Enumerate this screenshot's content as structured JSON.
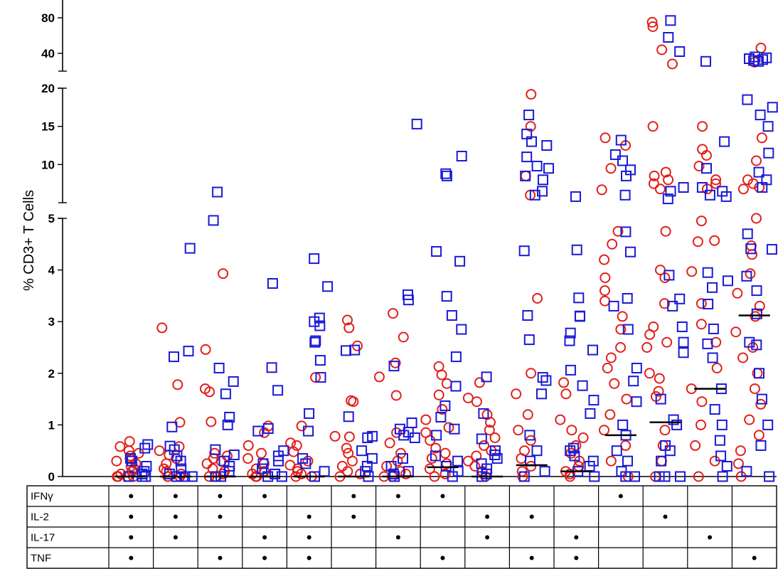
{
  "chart_data": {
    "type": "scatter",
    "title": "",
    "xlabel": "",
    "ylabel": "% CD3+ T Cells",
    "y_axis_segments": [
      {
        "range": [
          0,
          5
        ],
        "ticks": [
          0,
          1,
          2,
          3,
          4,
          5
        ]
      },
      {
        "range": [
          5,
          20
        ],
        "ticks": [
          10,
          15,
          20
        ]
      },
      {
        "range": [
          20,
          100
        ],
        "ticks": [
          40,
          80
        ]
      }
    ],
    "grid": false,
    "legend": "none",
    "colors": {
      "circle_series": "#e0201a",
      "square_series": "#1a1ad6"
    },
    "series": [
      {
        "name": "",
        "marker": "circle",
        "color": "#e0201a",
        "groups": [
          [
            0.68,
            0.58,
            0.5,
            0.45,
            0.4,
            0.35,
            0.3,
            0.25,
            0.2,
            0.15,
            0.1,
            0.05,
            0,
            0,
            0,
            0
          ],
          [
            2.88,
            1.78,
            1.05,
            0.58,
            0.5,
            0.42,
            0.35,
            0.25,
            0.15,
            0.1,
            0.05,
            0,
            0,
            0
          ],
          [
            3.93,
            2.46,
            1.7,
            1.64,
            1.06,
            0.45,
            0.4,
            0.35,
            0.3,
            0.25,
            0.15,
            0.1,
            0.05,
            0,
            0
          ],
          [
            0.98,
            0.85,
            0.6,
            0.45,
            0.35,
            0.25,
            0.15,
            0.1,
            0.05,
            0,
            0,
            0
          ],
          [
            1.92,
            0.98,
            0.65,
            0.6,
            0.48,
            0.3,
            0.22,
            0.15,
            0.1,
            0.05,
            0,
            0
          ],
          [
            3.03,
            2.88,
            2.53,
            1.47,
            1.45,
            0.78,
            0.77,
            0.55,
            0.45,
            0.3,
            0.2,
            0.1,
            0.05,
            0
          ],
          [
            3.16,
            2.7,
            2.2,
            1.93,
            1.57,
            0.85,
            0.65,
            0.45,
            0.3,
            0.2,
            0.1,
            0.05,
            0,
            0
          ],
          [
            2.13,
            1.97,
            1.8,
            1.58,
            1.3,
            1.1,
            0.95,
            0.85,
            0.7,
            0.55,
            0.45,
            0.35,
            0.25,
            0.15,
            0.05,
            0
          ],
          [
            1.82,
            1.52,
            1.45,
            1.2,
            1.05,
            0.9,
            0.75,
            0.6,
            0.5,
            0.4,
            0.3,
            0.2,
            0.1,
            0
          ],
          [
            19.2,
            15,
            8.5,
            6,
            3.45,
            2,
            1.6,
            1.2,
            0.9,
            0.7,
            0.5,
            0.35,
            0.2,
            0.1,
            0
          ],
          [
            1.82,
            1.6,
            1.1,
            0.9,
            0.75,
            0.6,
            0.45,
            0.3,
            0.2,
            0.1,
            0.05,
            0
          ],
          [
            13.5,
            12.5,
            9.5,
            6.7,
            4.75,
            4.5,
            4.2,
            3.85,
            3.6,
            3.4,
            3.1,
            2.85,
            2.5,
            2.3,
            2.1,
            1.8,
            1.5,
            1.2,
            0.9,
            0.6,
            0.3,
            0
          ],
          [
            75,
            70,
            44,
            28,
            15,
            9,
            8.5,
            8,
            7.5,
            6.8,
            4.75,
            4,
            3.85,
            3.35,
            2.9,
            2.75,
            2.6,
            2.5,
            2,
            1.9,
            1.65,
            1.55,
            0.9,
            0.6,
            0.3,
            0
          ],
          [
            15,
            12,
            11.2,
            9.8,
            8,
            7.5,
            6.8,
            4.95,
            4.57,
            4.55,
            3.97,
            3.35,
            2.95,
            2.6,
            2.1,
            1.7,
            1.45,
            1,
            0.6,
            0.3,
            0
          ],
          [
            46,
            30,
            13.5,
            10.5,
            8,
            7.5,
            7,
            6.8,
            5,
            4.47,
            4.3,
            3.93,
            3.55,
            3.3,
            3.1,
            2.8,
            2.5,
            2.3,
            2,
            1.7,
            1.4,
            1.1,
            0.8,
            0.5,
            0.25,
            0
          ]
        ]
      },
      {
        "name": "",
        "marker": "square",
        "color": "#1a1ad6",
        "groups": [
          [
            0.62,
            0.55,
            0.35,
            0.3,
            0.2,
            0.1,
            0.05,
            0,
            0,
            0
          ],
          [
            4.42,
            2.43,
            2.32,
            0.96,
            0.59,
            0.52,
            0.4,
            0.3,
            0.15,
            0.05,
            0,
            0,
            0
          ],
          [
            6.4,
            4.96,
            2.1,
            1.84,
            1.6,
            1.15,
            1,
            0.52,
            0.42,
            0.3,
            0.2,
            0.1,
            0,
            0
          ],
          [
            3.74,
            2.11,
            1.67,
            0.93,
            0.88,
            0.5,
            0.4,
            0.3,
            0.25,
            0.15,
            0.05,
            0,
            0
          ],
          [
            4.22,
            3.68,
            3.07,
            3,
            2.92,
            2.63,
            2.6,
            2.25,
            1.92,
            1.22,
            0.88,
            0.35,
            0.25,
            0.1,
            0
          ],
          [
            2.45,
            2.44,
            1.16,
            0.78,
            0.75,
            0.5,
            0.35,
            0.2,
            0.1,
            0
          ],
          [
            15.3,
            3.52,
            3.42,
            2.14,
            1.04,
            0.92,
            0.86,
            0.8,
            0.75,
            0.35,
            0.2,
            0.1,
            0.05,
            0
          ],
          [
            11.1,
            8.8,
            8.5,
            4.36,
            4.17,
            3.49,
            3.12,
            2.85,
            2.32,
            1.75,
            1.37,
            1.15,
            0.92,
            0.8,
            0.4,
            0.3,
            0.2,
            0.1,
            0
          ],
          [
            1.93,
            1.22,
            0.73,
            0.5,
            0.42,
            0.35,
            0.25,
            0.15,
            0.05,
            0
          ],
          [
            16.5,
            14,
            13,
            12.5,
            11,
            9.8,
            9.5,
            8.5,
            8,
            6.5,
            6,
            4.37,
            3.12,
            2.65,
            1.92,
            1.86,
            1.6,
            0.8,
            0.5,
            0.3,
            0.1,
            0
          ],
          [
            5.8,
            4.39,
            3.46,
            3.11,
            3.1,
            2.78,
            2.63,
            2.45,
            2.06,
            1.76,
            1.48,
            1.22,
            0.55,
            0.5,
            0.4,
            0.3,
            0.2,
            0.1,
            0
          ],
          [
            13.2,
            11.3,
            10.5,
            9.3,
            8.5,
            6,
            4.74,
            4.35,
            3.45,
            3.3,
            2.85,
            2.1,
            1.85,
            1.45,
            1,
            0.8,
            0.5,
            0.3,
            0.1,
            0,
            0
          ],
          [
            77,
            58,
            42,
            7,
            6.5,
            5.5,
            3.9,
            3.44,
            3.3,
            2.9,
            2.6,
            2.4,
            1.5,
            1.1,
            1,
            0.6,
            0.5,
            0.3,
            0,
            0,
            0
          ],
          [
            31,
            13,
            9.5,
            7,
            6.5,
            6,
            5.8,
            3.95,
            3.79,
            3.66,
            3.34,
            2.86,
            2.57,
            2.3,
            1.7,
            1.3,
            1,
            0.7,
            0.4,
            0.2,
            0
          ],
          [
            36,
            35,
            34,
            33,
            32,
            31,
            18.5,
            17.5,
            16.5,
            15,
            11.5,
            9,
            8,
            7,
            4.7,
            4.4,
            4.41,
            3.88,
            3.6,
            3.15,
            2.6,
            2.55,
            2,
            1.5,
            1,
            0.6,
            0.1,
            0
          ]
        ]
      }
    ],
    "medians": [
      0,
      0,
      0,
      0,
      0,
      0,
      0,
      0.18,
      0,
      0.22,
      0.1,
      0.8,
      1.05,
      1.7,
      3.12
    ],
    "table": {
      "rows": [
        {
          "label": "IFNγ",
          "marks": [
            1,
            1,
            1,
            1,
            0,
            1,
            1,
            1,
            0,
            0,
            0,
            1,
            0,
            0,
            0
          ]
        },
        {
          "label": "IL-2",
          "marks": [
            1,
            1,
            1,
            0,
            1,
            1,
            0,
            0,
            1,
            1,
            0,
            0,
            1,
            0,
            0
          ]
        },
        {
          "label": "IL-17",
          "marks": [
            1,
            1,
            0,
            1,
            1,
            0,
            1,
            0,
            1,
            0,
            1,
            0,
            0,
            1,
            0
          ]
        },
        {
          "label": "TNF",
          "marks": [
            1,
            0,
            1,
            1,
            1,
            0,
            0,
            1,
            0,
            1,
            1,
            0,
            0,
            0,
            1
          ]
        }
      ],
      "mark_symbol": "•"
    }
  }
}
